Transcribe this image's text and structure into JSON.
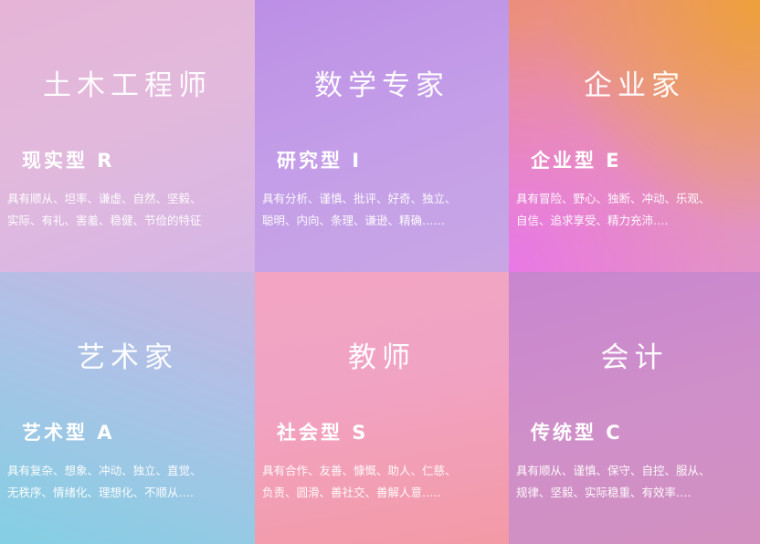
{
  "cards": [
    {
      "job": "土木工程师",
      "type": "现实型 R",
      "traits_line1": "具有顺从、坦率、谦虚、自然、坚毅、",
      "traits_line2": "实际、有礼、害羞、稳健、节俭的特征"
    },
    {
      "job": "数学专家",
      "type": "研究型 I",
      "traits_line1": "具有分析、谨慎、批评、好奇、独立、",
      "traits_line2": "聪明、内向、条理、谦逊、精确……"
    },
    {
      "job": "企业家",
      "type": "企业型 E",
      "traits_line1": "具有冒险、野心、独断、冲动、乐观、",
      "traits_line2": "自信、追求享受、精力充沛…."
    },
    {
      "job": "艺术家",
      "type": "艺术型 A",
      "traits_line1": "具有复杂、想象、冲动、独立、直觉、",
      "traits_line2": "无秩序、情绪化、理想化、不顺从…."
    },
    {
      "job": "教师",
      "type": "社会型 S",
      "traits_line1": "具有合作、友善、慷慨、助人、仁慈、",
      "traits_line2": "负责、圆滑、善社交、善解人意….."
    },
    {
      "job": "会计",
      "type": "传统型 C",
      "traits_line1": "具有顺从、谨慎、保守、自控、服从、",
      "traits_line2": "规律、坚毅、实际稳重、有效率…."
    }
  ]
}
